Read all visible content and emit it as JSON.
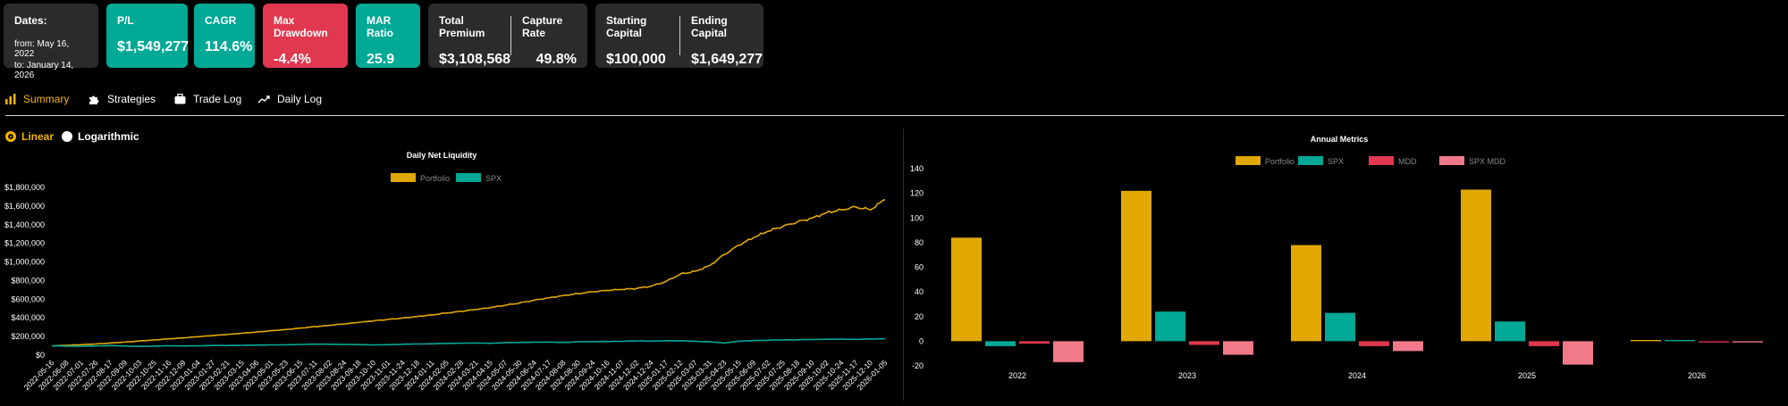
{
  "cards": {
    "dates": {
      "label": "Dates:",
      "from": "from: May 16, 2022",
      "to": "to: January 14, 2026"
    },
    "pl": {
      "label": "P/L",
      "value": "$1,549,277"
    },
    "cagr": {
      "label": "CAGR",
      "value": "114.6%"
    },
    "max_drawdown": {
      "label": "Max Drawdown",
      "value": "-4.4%"
    },
    "mar_ratio": {
      "label": "MAR Ratio",
      "value": "25.9"
    },
    "total_premium": {
      "label": "Total Premium",
      "value": "$3,108,568"
    },
    "capture_rate": {
      "label": "Capture Rate",
      "value": "49.8%"
    },
    "starting_capital": {
      "label": "Starting Capital",
      "value": "$100,000"
    },
    "ending_capital": {
      "label": "Ending Capital",
      "value": "$1,649,277"
    }
  },
  "tabs": [
    {
      "label": "Summary",
      "icon": "bar-chart-icon",
      "active": true
    },
    {
      "label": "Strategies",
      "icon": "puzzle-icon",
      "active": false
    },
    {
      "label": "Trade Log",
      "icon": "briefcase-icon",
      "active": false
    },
    {
      "label": "Daily Log",
      "icon": "trend-icon",
      "active": false
    }
  ],
  "scale_options": {
    "linear": "Linear",
    "logarithmic": "Logarithmic",
    "selected": "linear"
  },
  "colors": {
    "accent": "#f2b400",
    "portfolio": "#e0a800",
    "spx": "#00a896",
    "mdd": "#e0384f",
    "spx_mdd": "#f07a8a",
    "teal_card": "#00a896",
    "red_card": "#e0384f"
  },
  "chart_data": [
    {
      "type": "line",
      "title": "Daily Net Liquidity",
      "legend": [
        "Portfolio",
        "SPX"
      ],
      "legend_position": "top-center",
      "ylim": [
        0,
        1800000
      ],
      "yticks": [
        "$0",
        "$200,000",
        "$400,000",
        "$600,000",
        "$800,000",
        "$1,000,000",
        "$1,200,000",
        "$1,400,000",
        "$1,600,000",
        "$1,800,000"
      ],
      "x": [
        "2022-05-16",
        "2022-06-08",
        "2022-07-01",
        "2022-07-26",
        "2022-08-17",
        "2022-09-09",
        "2022-10-03",
        "2022-10-25",
        "2022-11-16",
        "2022-12-09",
        "2023-01-04",
        "2023-01-27",
        "2023-02-21",
        "2023-03-15",
        "2023-04-06",
        "2023-05-01",
        "2023-05-23",
        "2023-06-15",
        "2023-07-11",
        "2023-08-02",
        "2023-08-24",
        "2023-09-18",
        "2023-10-10",
        "2023-11-01",
        "2023-11-24",
        "2023-12-18",
        "2024-01-11",
        "2024-02-05",
        "2024-02-28",
        "2024-03-21",
        "2024-04-15",
        "2024-05-07",
        "2024-05-30",
        "2024-06-24",
        "2024-07-17",
        "2024-08-08",
        "2024-08-30",
        "2024-09-24",
        "2024-10-16",
        "2024-11-07",
        "2024-12-02",
        "2024-12-24",
        "2025-01-17",
        "2025-02-12",
        "2025-03-07",
        "2025-03-31",
        "2025-04-23",
        "2025-05-15",
        "2025-06-09",
        "2025-07-02",
        "2025-07-25",
        "2025-08-18",
        "2025-09-10",
        "2025-10-02",
        "2025-10-24",
        "2025-11-17",
        "2025-12-10",
        "2026-01-05"
      ],
      "series": [
        {
          "name": "Portfolio",
          "values": [
            100000,
            105000,
            112000,
            120000,
            130000,
            140000,
            152000,
            163000,
            175000,
            185000,
            198000,
            210000,
            222000,
            235000,
            248000,
            262000,
            275000,
            290000,
            305000,
            320000,
            335000,
            352000,
            368000,
            383000,
            398000,
            415000,
            432000,
            452000,
            470000,
            490000,
            510000,
            535000,
            560000,
            590000,
            615000,
            640000,
            660000,
            680000,
            695000,
            705000,
            715000,
            740000,
            790000,
            870000,
            900000,
            960000,
            1080000,
            1180000,
            1260000,
            1330000,
            1380000,
            1430000,
            1470000,
            1530000,
            1560000,
            1590000,
            1560000,
            1670000
          ]
        },
        {
          "name": "SPX",
          "values": [
            100000,
            97000,
            95000,
            99000,
            103000,
            98000,
            94000,
            97000,
            101000,
            99000,
            100000,
            104000,
            103000,
            105000,
            108000,
            110000,
            111000,
            115000,
            118000,
            117000,
            115000,
            113000,
            110000,
            112000,
            117000,
            120000,
            122000,
            126000,
            128000,
            130000,
            127000,
            133000,
            136000,
            139000,
            140000,
            136000,
            143000,
            145000,
            147000,
            149000,
            153000,
            150000,
            155000,
            155000,
            148000,
            143000,
            130000,
            150000,
            156000,
            160000,
            163000,
            165000,
            168000,
            170000,
            171000,
            169000,
            174000,
            175000
          ]
        }
      ]
    },
    {
      "type": "bar",
      "title": "Annual Metrics",
      "legend": [
        "Portfolio",
        "SPX",
        "MDD",
        "SPX MDD"
      ],
      "legend_position": "top-center",
      "categories": [
        "2022",
        "2023",
        "2024",
        "2025",
        "2026"
      ],
      "ylim": [
        -20,
        140
      ],
      "yticks": [
        "-20",
        "0",
        "20",
        "40",
        "60",
        "80",
        "100",
        "120",
        "140"
      ],
      "series": [
        {
          "name": "Portfolio",
          "values": [
            84,
            122,
            78,
            123,
            1
          ]
        },
        {
          "name": "SPX",
          "values": [
            -4,
            24,
            23,
            16,
            1
          ]
        },
        {
          "name": "MDD",
          "values": [
            -2,
            -3,
            -4,
            -4,
            -1
          ]
        },
        {
          "name": "SPX MDD",
          "values": [
            -17,
            -11,
            -8,
            -19,
            -1
          ]
        }
      ]
    }
  ]
}
